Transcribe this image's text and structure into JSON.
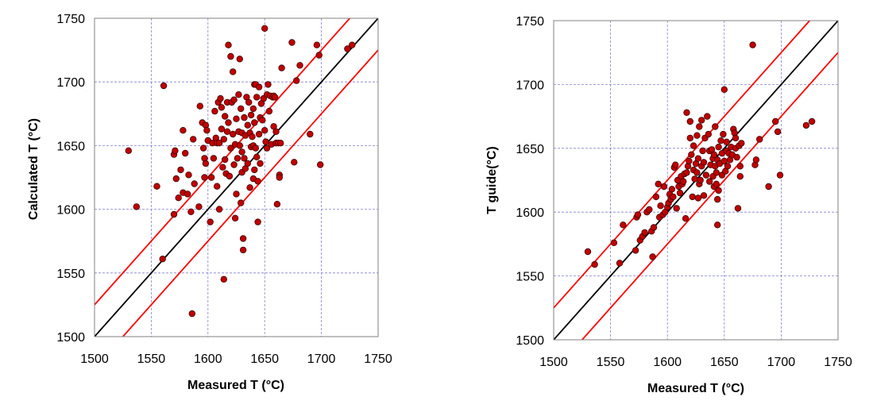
{
  "chart_data": [
    {
      "type": "scatter",
      "xlabel": "Measured T (°C)",
      "ylabel": "Calculated T (°C)",
      "xlim": [
        1500,
        1750
      ],
      "ylim": [
        1500,
        1750
      ],
      "xticks": [
        "1500",
        "1550",
        "1600",
        "1650",
        "1700",
        "1750"
      ],
      "yticks": [
        "1500",
        "1550",
        "1600",
        "1650",
        "1700",
        "1750"
      ],
      "grid": true,
      "marker_color": "#c00000",
      "reference_lines": [
        {
          "offset": 0,
          "color": "#000000"
        },
        {
          "offset": 25,
          "color": "#ff0000"
        },
        {
          "offset": -25,
          "color": "#ff0000"
        }
      ],
      "points": [
        [
          1530,
          1646
        ],
        [
          1537,
          1602
        ],
        [
          1555,
          1618
        ],
        [
          1560,
          1561
        ],
        [
          1561,
          1697
        ],
        [
          1570,
          1596
        ],
        [
          1570,
          1643
        ],
        [
          1571,
          1646
        ],
        [
          1572,
          1624
        ],
        [
          1574,
          1609
        ],
        [
          1576,
          1631
        ],
        [
          1578,
          1613
        ],
        [
          1578,
          1662
        ],
        [
          1580,
          1644
        ],
        [
          1582,
          1612
        ],
        [
          1583,
          1627
        ],
        [
          1585,
          1598
        ],
        [
          1586,
          1518
        ],
        [
          1587,
          1655
        ],
        [
          1588,
          1620
        ],
        [
          1592,
          1602
        ],
        [
          1593,
          1681
        ],
        [
          1595,
          1668
        ],
        [
          1596,
          1648
        ],
        [
          1597,
          1640
        ],
        [
          1597,
          1625
        ],
        [
          1598,
          1636
        ],
        [
          1598,
          1666
        ],
        [
          1599,
          1662
        ],
        [
          1600,
          1654
        ],
        [
          1602,
          1590
        ],
        [
          1603,
          1625
        ],
        [
          1604,
          1652
        ],
        [
          1605,
          1640
        ],
        [
          1606,
          1677
        ],
        [
          1607,
          1656
        ],
        [
          1608,
          1652
        ],
        [
          1608,
          1618
        ],
        [
          1609,
          1684
        ],
        [
          1610,
          1600
        ],
        [
          1610,
          1652
        ],
        [
          1611,
          1687
        ],
        [
          1612,
          1663
        ],
        [
          1612,
          1680
        ],
        [
          1613,
          1633
        ],
        [
          1614,
          1545
        ],
        [
          1614,
          1655
        ],
        [
          1615,
          1673
        ],
        [
          1615,
          1639
        ],
        [
          1616,
          1628
        ],
        [
          1617,
          1661
        ],
        [
          1617,
          1684
        ],
        [
          1618,
          1729
        ],
        [
          1618,
          1668
        ],
        [
          1619,
          1626
        ],
        [
          1620,
          1648
        ],
        [
          1620,
          1720
        ],
        [
          1621,
          1684
        ],
        [
          1622,
          1659
        ],
        [
          1622,
          1708
        ],
        [
          1623,
          1635
        ],
        [
          1623,
          1686
        ],
        [
          1624,
          1651
        ],
        [
          1624,
          1593
        ],
        [
          1625,
          1671
        ],
        [
          1625,
          1612
        ],
        [
          1626,
          1640
        ],
        [
          1627,
          1661
        ],
        [
          1627,
          1690
        ],
        [
          1628,
          1718
        ],
        [
          1628,
          1650
        ],
        [
          1629,
          1679
        ],
        [
          1629,
          1605
        ],
        [
          1630,
          1660
        ],
        [
          1630,
          1629
        ],
        [
          1630,
          1645
        ],
        [
          1631,
          1568
        ],
        [
          1631,
          1577
        ],
        [
          1632,
          1640
        ],
        [
          1632,
          1672
        ],
        [
          1633,
          1658
        ],
        [
          1633,
          1632
        ],
        [
          1634,
          1688
        ],
        [
          1635,
          1666
        ],
        [
          1635,
          1636
        ],
        [
          1636,
          1684
        ],
        [
          1637,
          1617
        ],
        [
          1637,
          1660
        ],
        [
          1638,
          1649
        ],
        [
          1638,
          1674
        ],
        [
          1639,
          1657
        ],
        [
          1640,
          1650
        ],
        [
          1640,
          1624
        ],
        [
          1640,
          1679
        ],
        [
          1641,
          1698
        ],
        [
          1641,
          1668
        ],
        [
          1641,
          1631
        ],
        [
          1642,
          1698
        ],
        [
          1642,
          1648
        ],
        [
          1643,
          1688
        ],
        [
          1643,
          1641
        ],
        [
          1644,
          1622
        ],
        [
          1644,
          1590
        ],
        [
          1645,
          1696
        ],
        [
          1645,
          1659
        ],
        [
          1646,
          1636
        ],
        [
          1646,
          1672
        ],
        [
          1647,
          1683
        ],
        [
          1648,
          1670
        ],
        [
          1649,
          1687
        ],
        [
          1650,
          1742
        ],
        [
          1650,
          1662
        ],
        [
          1651,
          1653
        ],
        [
          1652,
          1648
        ],
        [
          1652,
          1690
        ],
        [
          1653,
          1698
        ],
        [
          1654,
          1677
        ],
        [
          1655,
          1689
        ],
        [
          1656,
          1651
        ],
        [
          1657,
          1688
        ],
        [
          1658,
          1665
        ],
        [
          1658,
          1689
        ],
        [
          1659,
          1688
        ],
        [
          1660,
          1652
        ],
        [
          1660,
          1661
        ],
        [
          1661,
          1604
        ],
        [
          1662,
          1652
        ],
        [
          1663,
          1627
        ],
        [
          1663,
          1625
        ],
        [
          1664,
          1652
        ],
        [
          1665,
          1711
        ],
        [
          1674,
          1731
        ],
        [
          1676,
          1637
        ],
        [
          1678,
          1701
        ],
        [
          1681,
          1713
        ],
        [
          1690,
          1659
        ],
        [
          1696,
          1729
        ],
        [
          1698,
          1721
        ],
        [
          1699,
          1635
        ],
        [
          1723,
          1726
        ],
        [
          1727,
          1729
        ]
      ]
    },
    {
      "type": "scatter",
      "xlabel": "Measured T (°C)",
      "ylabel": "T guide(°C)",
      "xlim": [
        1500,
        1750
      ],
      "ylim": [
        1500,
        1750
      ],
      "xticks": [
        "1500",
        "1550",
        "1600",
        "1650",
        "1700",
        "1750"
      ],
      "yticks": [
        "1500",
        "1550",
        "1600",
        "1650",
        "1700",
        "1750"
      ],
      "grid": true,
      "marker_color": "#c00000",
      "reference_lines": [
        {
          "offset": 0,
          "color": "#000000"
        },
        {
          "offset": 25,
          "color": "#ff0000"
        },
        {
          "offset": -25,
          "color": "#ff0000"
        }
      ],
      "points": [
        [
          1530,
          1569
        ],
        [
          1536,
          1559
        ],
        [
          1553,
          1576
        ],
        [
          1558,
          1560
        ],
        [
          1561,
          1590
        ],
        [
          1572,
          1570
        ],
        [
          1573,
          1596
        ],
        [
          1574,
          1598
        ],
        [
          1576,
          1578
        ],
        [
          1578,
          1581
        ],
        [
          1580,
          1584
        ],
        [
          1582,
          1600
        ],
        [
          1584,
          1602
        ],
        [
          1586,
          1585
        ],
        [
          1587,
          1565
        ],
        [
          1588,
          1588
        ],
        [
          1590,
          1612
        ],
        [
          1592,
          1622
        ],
        [
          1593,
          1596
        ],
        [
          1594,
          1605
        ],
        [
          1596,
          1598
        ],
        [
          1597,
          1620
        ],
        [
          1598,
          1600
        ],
        [
          1600,
          1604
        ],
        [
          1601,
          1607
        ],
        [
          1602,
          1614
        ],
        [
          1603,
          1610
        ],
        [
          1604,
          1618
        ],
        [
          1605,
          1612
        ],
        [
          1606,
          1635
        ],
        [
          1607,
          1637
        ],
        [
          1608,
          1603
        ],
        [
          1609,
          1625
        ],
        [
          1610,
          1620
        ],
        [
          1611,
          1615
        ],
        [
          1612,
          1628
        ],
        [
          1613,
          1622
        ],
        [
          1614,
          1624
        ],
        [
          1615,
          1630
        ],
        [
          1616,
          1595
        ],
        [
          1617,
          1678
        ],
        [
          1617,
          1631
        ],
        [
          1618,
          1636
        ],
        [
          1619,
          1640
        ],
        [
          1620,
          1658
        ],
        [
          1620,
          1671
        ],
        [
          1621,
          1645
        ],
        [
          1622,
          1612
        ],
        [
          1623,
          1633
        ],
        [
          1623,
          1652
        ],
        [
          1624,
          1626
        ],
        [
          1625,
          1638
        ],
        [
          1626,
          1631
        ],
        [
          1626,
          1660
        ],
        [
          1627,
          1642
        ],
        [
          1627,
          1611
        ],
        [
          1628,
          1622
        ],
        [
          1628,
          1667
        ],
        [
          1629,
          1625
        ],
        [
          1630,
          1636
        ],
        [
          1630,
          1672
        ],
        [
          1631,
          1648
        ],
        [
          1632,
          1639
        ],
        [
          1632,
          1613
        ],
        [
          1633,
          1658
        ],
        [
          1634,
          1629
        ],
        [
          1635,
          1675
        ],
        [
          1636,
          1661
        ],
        [
          1637,
          1648
        ],
        [
          1637,
          1624
        ],
        [
          1638,
          1637
        ],
        [
          1639,
          1649
        ],
        [
          1640,
          1628
        ],
        [
          1640,
          1642
        ],
        [
          1641,
          1645
        ],
        [
          1641,
          1620
        ],
        [
          1642,
          1667
        ],
        [
          1642,
          1636
        ],
        [
          1643,
          1631
        ],
        [
          1643,
          1622
        ],
        [
          1644,
          1641
        ],
        [
          1644,
          1610
        ],
        [
          1644,
          1590
        ],
        [
          1645,
          1651
        ],
        [
          1645,
          1617
        ],
        [
          1646,
          1638
        ],
        [
          1647,
          1656
        ],
        [
          1648,
          1629
        ],
        [
          1648,
          1646
        ],
        [
          1649,
          1661
        ],
        [
          1650,
          1696
        ],
        [
          1650,
          1640
        ],
        [
          1651,
          1632
        ],
        [
          1652,
          1648
        ],
        [
          1652,
          1655
        ],
        [
          1653,
          1636
        ],
        [
          1654,
          1646
        ],
        [
          1655,
          1641
        ],
        [
          1656,
          1651
        ],
        [
          1657,
          1645
        ],
        [
          1658,
          1665
        ],
        [
          1659,
          1662
        ],
        [
          1660,
          1650
        ],
        [
          1660,
          1658
        ],
        [
          1661,
          1643
        ],
        [
          1662,
          1603
        ],
        [
          1663,
          1652
        ],
        [
          1664,
          1628
        ],
        [
          1664,
          1636
        ],
        [
          1665,
          1654
        ],
        [
          1675,
          1731
        ],
        [
          1677,
          1637
        ],
        [
          1678,
          1641
        ],
        [
          1681,
          1657
        ],
        [
          1689,
          1620
        ],
        [
          1695,
          1671
        ],
        [
          1697,
          1663
        ],
        [
          1699,
          1629
        ],
        [
          1722,
          1668
        ],
        [
          1727,
          1671
        ]
      ]
    }
  ]
}
